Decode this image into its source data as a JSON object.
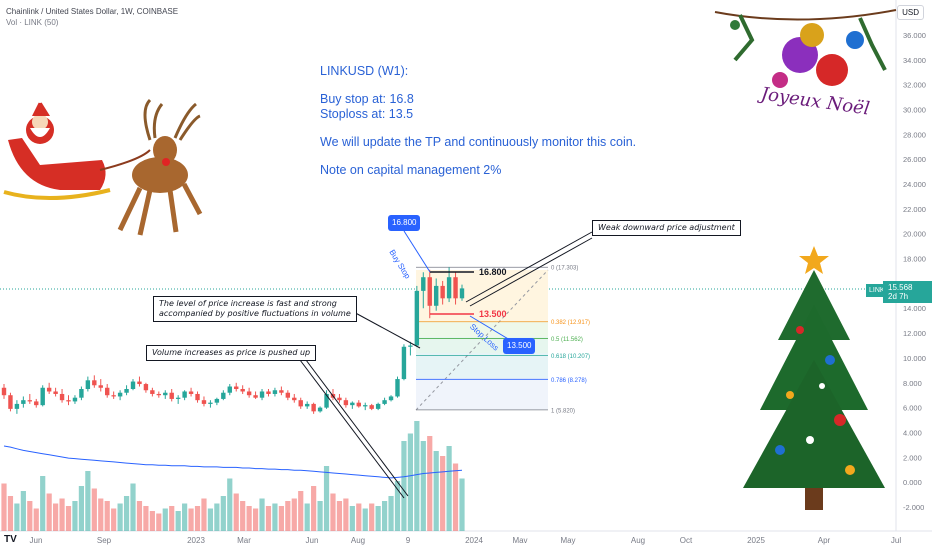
{
  "header": {
    "title": "Chainlink / United States Dollar, 1W, COINBASE",
    "volume_label": "Vol · LINK (50)",
    "currency_button": "USD"
  },
  "note": {
    "title": "LINKUSD (W1):",
    "buy_stop": "Buy stop at: 16.8",
    "stoploss": "Stoploss at: 13.5",
    "update": "We will update the TP and continuously monitor this coin.",
    "capital": "Note on capital management 2%"
  },
  "annotations": {
    "weak_adjustment": "Weak downward price adjustment",
    "increase_line1": "The level of price increase is fast and strong",
    "increase_line2": "accompanied by positive fluctuations in volume",
    "volume_push": "Volume increases as price is pushed up",
    "buy_stop_label": "Buy Stop",
    "stop_loss_label": "Stop Loss",
    "greeting": "Joyeux Noël"
  },
  "badges": {
    "buy_price": "16.800",
    "stop_price": "13.500",
    "buy_level": "16.800",
    "stop_level": "13.500"
  },
  "price_tag": {
    "symbol": "LINKUSD",
    "price": "15.568",
    "countdown": "2d 7h"
  },
  "fib": [
    {
      "label": "0 (17.303)"
    },
    {
      "label": "0.382 (12.917)"
    },
    {
      "label": "0.5 (11.562)"
    },
    {
      "label": "0.618 (10.207)"
    },
    {
      "label": "0.786 (8.278)"
    },
    {
      "label": "1 (5.820)"
    }
  ],
  "y_ticks": [
    "36.000",
    "34.000",
    "32.000",
    "30.000",
    "28.000",
    "26.000",
    "24.000",
    "22.000",
    "20.000",
    "18.000",
    "16.000",
    "14.000",
    "12.000",
    "10.000",
    "8.000",
    "6.000",
    "4.000",
    "2.000",
    "0.000",
    "-2.000"
  ],
  "x_ticks": [
    "Jun",
    "Sep",
    "2023",
    "Mar",
    "Jun",
    "Aug",
    "9",
    "2024",
    "Mav",
    "May",
    "Aug",
    "Oct",
    "2025",
    "Apr",
    "Jul"
  ],
  "chart_data": {
    "type": "candlestick",
    "symbol": "LINKUSD",
    "interval": "1W",
    "ylim": [
      -2,
      36
    ],
    "candles": [
      [
        7.6,
        7.9,
        6.7,
        7.0
      ],
      [
        7.0,
        7.2,
        5.7,
        5.9
      ],
      [
        5.9,
        6.6,
        5.5,
        6.3
      ],
      [
        6.3,
        6.9,
        6.0,
        6.6
      ],
      [
        6.6,
        7.1,
        6.3,
        6.5
      ],
      [
        6.5,
        6.7,
        6.0,
        6.2
      ],
      [
        6.2,
        7.8,
        6.1,
        7.6
      ],
      [
        7.6,
        8.0,
        7.1,
        7.3
      ],
      [
        7.3,
        7.6,
        6.9,
        7.1
      ],
      [
        7.1,
        7.5,
        6.4,
        6.6
      ],
      [
        6.6,
        7.0,
        6.2,
        6.5
      ],
      [
        6.5,
        7.0,
        6.3,
        6.8
      ],
      [
        6.8,
        7.7,
        6.6,
        7.5
      ],
      [
        7.5,
        8.5,
        7.3,
        8.2
      ],
      [
        8.2,
        8.6,
        7.6,
        7.8
      ],
      [
        7.8,
        8.3,
        7.3,
        7.6
      ],
      [
        7.6,
        7.9,
        6.8,
        7.0
      ],
      [
        7.0,
        7.3,
        6.7,
        6.9
      ],
      [
        6.9,
        7.4,
        6.6,
        7.2
      ],
      [
        7.2,
        7.8,
        7.0,
        7.5
      ],
      [
        7.5,
        8.3,
        7.4,
        8.1
      ],
      [
        8.1,
        8.5,
        7.7,
        7.9
      ],
      [
        7.9,
        8.0,
        7.2,
        7.4
      ],
      [
        7.4,
        7.6,
        6.9,
        7.1
      ],
      [
        7.1,
        7.3,
        6.8,
        7.0
      ],
      [
        7.0,
        7.4,
        6.7,
        7.2
      ],
      [
        7.2,
        7.5,
        6.5,
        6.7
      ],
      [
        6.7,
        7.0,
        6.3,
        6.8
      ],
      [
        6.8,
        7.4,
        6.6,
        7.3
      ],
      [
        7.3,
        7.6,
        6.9,
        7.1
      ],
      [
        7.1,
        7.3,
        6.4,
        6.6
      ],
      [
        6.6,
        6.9,
        6.1,
        6.3
      ],
      [
        6.3,
        6.6,
        6.0,
        6.4
      ],
      [
        6.4,
        6.8,
        6.2,
        6.7
      ],
      [
        6.7,
        7.4,
        6.6,
        7.2
      ],
      [
        7.2,
        7.9,
        7.0,
        7.7
      ],
      [
        7.7,
        8.0,
        7.3,
        7.5
      ],
      [
        7.5,
        7.8,
        7.1,
        7.3
      ],
      [
        7.3,
        7.6,
        6.8,
        7.0
      ],
      [
        7.0,
        7.3,
        6.7,
        6.8
      ],
      [
        6.8,
        7.5,
        6.6,
        7.3
      ],
      [
        7.3,
        7.5,
        6.9,
        7.1
      ],
      [
        7.1,
        7.6,
        6.9,
        7.4
      ],
      [
        7.4,
        7.7,
        7.0,
        7.2
      ],
      [
        7.2,
        7.4,
        6.6,
        6.8
      ],
      [
        6.8,
        7.1,
        6.4,
        6.6
      ],
      [
        6.6,
        6.8,
        5.9,
        6.1
      ],
      [
        6.1,
        6.5,
        5.9,
        6.3
      ],
      [
        6.3,
        6.4,
        5.5,
        5.7
      ],
      [
        5.7,
        6.1,
        5.6,
        6.0
      ],
      [
        6.0,
        7.4,
        5.9,
        7.1
      ],
      [
        7.1,
        7.5,
        6.6,
        6.8
      ],
      [
        6.8,
        7.1,
        6.4,
        6.6
      ],
      [
        6.6,
        6.8,
        6.0,
        6.2
      ],
      [
        6.2,
        6.5,
        5.9,
        6.4
      ],
      [
        6.4,
        6.6,
        6.0,
        6.1
      ],
      [
        6.1,
        6.4,
        5.8,
        6.2
      ],
      [
        6.2,
        6.3,
        5.8,
        5.9
      ],
      [
        5.9,
        6.4,
        5.8,
        6.3
      ],
      [
        6.3,
        6.8,
        6.2,
        6.6
      ],
      [
        6.6,
        7.0,
        6.5,
        6.9
      ],
      [
        6.9,
        8.5,
        6.8,
        8.3
      ],
      [
        8.3,
        11.1,
        8.2,
        10.9
      ],
      [
        10.9,
        11.3,
        10.2,
        11.0
      ],
      [
        11.0,
        15.8,
        10.9,
        15.4
      ],
      [
        15.4,
        16.9,
        14.0,
        16.5
      ],
      [
        16.5,
        17.1,
        13.2,
        14.2
      ],
      [
        14.2,
        16.4,
        13.8,
        15.8
      ],
      [
        15.8,
        16.2,
        14.3,
        14.8
      ],
      [
        14.8,
        17.3,
        14.5,
        16.5
      ],
      [
        16.5,
        16.9,
        14.3,
        14.8
      ],
      [
        14.8,
        15.9,
        14.6,
        15.6
      ]
    ],
    "volume": [
      1.9,
      1.4,
      1.1,
      1.6,
      1.2,
      0.9,
      2.2,
      1.5,
      1.1,
      1.3,
      1.0,
      1.2,
      1.8,
      2.4,
      1.7,
      1.3,
      1.2,
      0.9,
      1.1,
      1.4,
      1.9,
      1.2,
      1.0,
      0.8,
      0.7,
      0.9,
      1.0,
      0.8,
      1.1,
      0.9,
      1.0,
      1.3,
      0.9,
      1.1,
      1.4,
      2.1,
      1.5,
      1.2,
      1.0,
      0.9,
      1.3,
      1.0,
      1.1,
      1.0,
      1.2,
      1.3,
      1.6,
      1.1,
      1.8,
      1.2,
      2.6,
      1.5,
      1.2,
      1.3,
      1.0,
      1.1,
      0.9,
      1.1,
      1.0,
      1.2,
      1.4,
      2.0,
      3.6,
      3.9,
      4.4,
      3.6,
      3.8,
      3.2,
      3.0,
      3.4,
      2.7,
      2.1
    ],
    "volume_ma": [
      0.8,
      0.78,
      0.75,
      0.72,
      0.7,
      0.68,
      0.66,
      0.64,
      0.62,
      0.6,
      0.58,
      0.57,
      0.56,
      0.55,
      0.54,
      0.53,
      0.52,
      0.51,
      0.5,
      0.49,
      0.48,
      0.47,
      0.46,
      0.46,
      0.45,
      0.45,
      0.44,
      0.44,
      0.44,
      0.43,
      0.43,
      0.42,
      0.42,
      0.42,
      0.41,
      0.41,
      0.41,
      0.4,
      0.4,
      0.39,
      0.39,
      0.38,
      0.38,
      0.37,
      0.37,
      0.36,
      0.36,
      0.35,
      0.34,
      0.33,
      0.32,
      0.31,
      0.3,
      0.29,
      0.28,
      0.27,
      0.26,
      0.25,
      0.24,
      0.23,
      0.22,
      0.23,
      0.24,
      0.26,
      0.28,
      0.3,
      0.31,
      0.32,
      0.33,
      0.34,
      0.35,
      0.36
    ],
    "levels": {
      "buy_stop": 16.8,
      "stop_loss": 13.5,
      "last": 15.568
    },
    "fib_levels": [
      17.303,
      12.917,
      11.562,
      10.207,
      8.278,
      5.82
    ]
  },
  "colors": {
    "up": "#26a69a",
    "down": "#ef5350",
    "note_text": "#2a62d6",
    "badge_blue": "#2962ff",
    "ma_line": "#2962ff",
    "fib_fill": "#fff5e0",
    "stop_red": "#f23645"
  }
}
